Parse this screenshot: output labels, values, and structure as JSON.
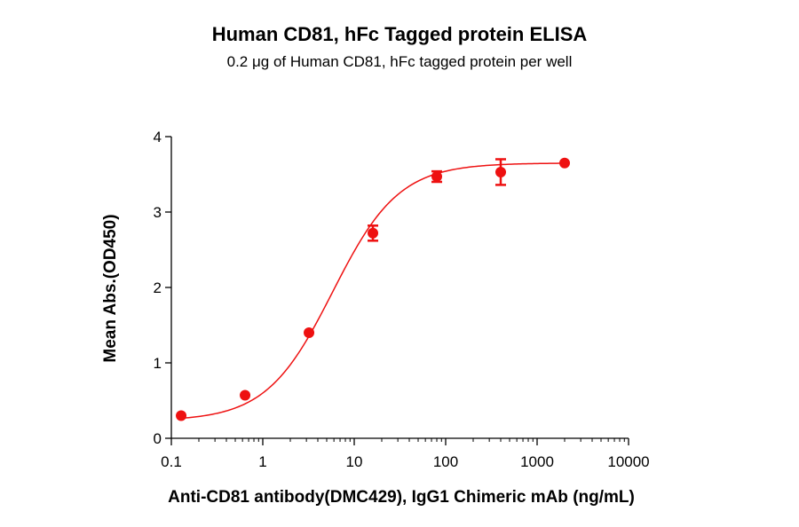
{
  "chart_data": {
    "type": "scatter",
    "title": "Human CD81, hFc Tagged protein ELISA",
    "subtitle": "0.2 μg of Human CD81, hFc tagged protein per well",
    "xlabel": "Anti-CD81 antibody(DMC429), IgG1 Chimeric mAb (ng/mL)",
    "ylabel": "Mean Abs.(OD450)",
    "x_scale": "log",
    "xlim": [
      0.1,
      10000
    ],
    "ylim": [
      0,
      4
    ],
    "x_ticks": [
      0.1,
      1,
      10,
      100,
      1000,
      10000
    ],
    "x_tick_labels": [
      "0.1",
      "1",
      "10",
      "100",
      "1000",
      "10000"
    ],
    "y_ticks": [
      0,
      1,
      2,
      3,
      4
    ],
    "y_tick_labels": [
      "0",
      "1",
      "2",
      "3",
      "4"
    ],
    "grid": false,
    "series": [
      {
        "color": "#ee1111",
        "points": [
          {
            "x": 0.128,
            "y": 0.3,
            "err": 0.0
          },
          {
            "x": 0.64,
            "y": 0.57,
            "err": 0.0
          },
          {
            "x": 3.2,
            "y": 1.4,
            "err": 0.0
          },
          {
            "x": 16,
            "y": 2.72,
            "err": 0.1
          },
          {
            "x": 80,
            "y": 3.47,
            "err": 0.07
          },
          {
            "x": 400,
            "y": 3.53,
            "err": 0.17
          },
          {
            "x": 2000,
            "y": 3.65,
            "err": 0.0
          }
        ],
        "fit": {
          "model": "4PL",
          "bottom": 0.23,
          "top": 3.65,
          "ec50": 5.8,
          "hill": 1.2
        }
      }
    ]
  }
}
